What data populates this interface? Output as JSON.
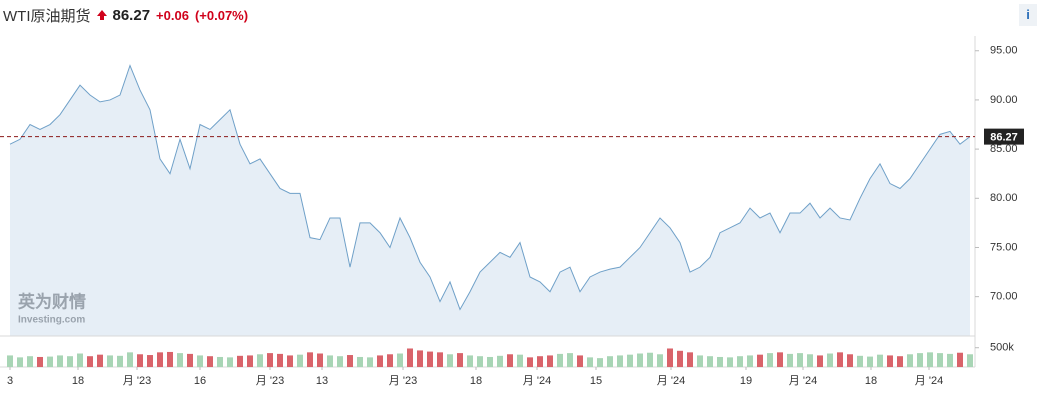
{
  "header": {
    "title": "WTI原油期货",
    "price": "86.27",
    "change": "+0.06",
    "change_pct": "(+0.07%)",
    "info": "i"
  },
  "watermark": {
    "brand": "英为财情",
    "site": "Investing.com"
  },
  "chart_data": {
    "type": "area",
    "last_price": 86.27,
    "line_color": "#6fa0c8",
    "fill_color": "#e6eef6",
    "last_line_color": "#8b1a1a",
    "up_color": "#a8d5b5",
    "down_color": "#d9636a",
    "xlim": [
      0,
      97
    ],
    "ylim": [
      66,
      96.5
    ],
    "yticks": [
      {
        "value": 95,
        "label": "95.00"
      },
      {
        "value": 90,
        "label": "90.00"
      },
      {
        "value": 85,
        "label": "85.00"
      },
      {
        "value": 80,
        "label": "80.00"
      },
      {
        "value": 75,
        "label": "75.00"
      },
      {
        "value": 70,
        "label": "70.00"
      }
    ],
    "xticks": [
      {
        "value": 0.5,
        "label": "3"
      },
      {
        "value": 7.3,
        "label": "18"
      },
      {
        "value": 13.2,
        "label": "月 '23"
      },
      {
        "value": 19.5,
        "label": "16"
      },
      {
        "value": 26.5,
        "label": "月 '23"
      },
      {
        "value": 31.7,
        "label": "13"
      },
      {
        "value": 39.8,
        "label": "月 '23"
      },
      {
        "value": 47.1,
        "label": "18"
      },
      {
        "value": 53.2,
        "label": "月 '24"
      },
      {
        "value": 59.1,
        "label": "15"
      },
      {
        "value": 66.6,
        "label": "月 '24"
      },
      {
        "value": 74.1,
        "label": "19"
      },
      {
        "value": 79.8,
        "label": "月 '24"
      },
      {
        "value": 86.6,
        "label": "18"
      },
      {
        "value": 92.4,
        "label": "月 '24"
      }
    ],
    "values": [
      85.5,
      86,
      87.5,
      87,
      87.5,
      88.5,
      90,
      91.5,
      90.5,
      89.8,
      90,
      90.5,
      93.5,
      91,
      89,
      84,
      82.5,
      86,
      83,
      87.5,
      87,
      88,
      89,
      85.5,
      83.5,
      84,
      82.5,
      81,
      80.5,
      80.5,
      76,
      75.8,
      78,
      78,
      73,
      77.5,
      77.5,
      76.5,
      75,
      78,
      76,
      73.5,
      72,
      69.5,
      71.5,
      68.7,
      70.5,
      72.5,
      73.5,
      74.5,
      74,
      75.5,
      72,
      71.5,
      70.5,
      72.5,
      73,
      70.5,
      72,
      72.5,
      72.8,
      73,
      74,
      75,
      76.5,
      78,
      77,
      75.5,
      72.5,
      73,
      74,
      76.5,
      77,
      77.5,
      79,
      78,
      78.5,
      76.5,
      78.5,
      78.5,
      79.5,
      78,
      79,
      78,
      77.8,
      80,
      82,
      83.5,
      81.5,
      81,
      82,
      83.5,
      85,
      86.5,
      86.8,
      85.5,
      86.27
    ],
    "volume_ylim": [
      0,
      700000
    ],
    "volume_yticks": [
      {
        "value": 500000,
        "label": "500k"
      }
    ],
    "volume": [
      300000,
      250000,
      280000,
      260000,
      270000,
      300000,
      280000,
      350000,
      280000,
      320000,
      300000,
      290000,
      380000,
      330000,
      310000,
      380000,
      390000,
      360000,
      340000,
      300000,
      280000,
      260000,
      250000,
      290000,
      300000,
      330000,
      360000,
      340000,
      300000,
      320000,
      380000,
      350000,
      300000,
      280000,
      310000,
      260000,
      250000,
      300000,
      330000,
      350000,
      480000,
      430000,
      400000,
      380000,
      330000,
      360000,
      300000,
      280000,
      260000,
      290000,
      330000,
      320000,
      250000,
      280000,
      300000,
      340000,
      360000,
      300000,
      250000,
      230000,
      280000,
      300000,
      320000,
      350000,
      370000,
      330000,
      480000,
      420000,
      380000,
      300000,
      280000,
      260000,
      250000,
      280000,
      300000,
      320000,
      360000,
      380000,
      340000,
      360000,
      330000,
      300000,
      350000,
      380000,
      330000,
      290000,
      270000,
      320000,
      300000,
      280000,
      330000,
      360000,
      380000,
      360000,
      340000,
      370000,
      330000
    ]
  }
}
